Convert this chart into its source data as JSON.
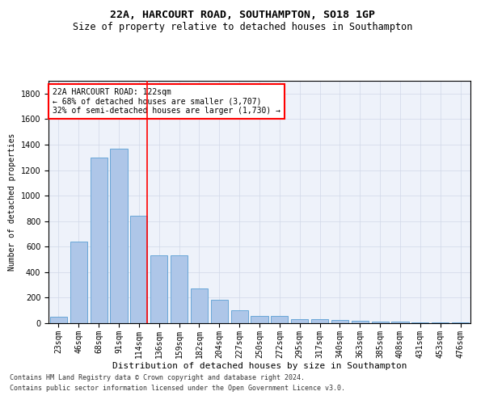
{
  "title": "22A, HARCOURT ROAD, SOUTHAMPTON, SO18 1GP",
  "subtitle": "Size of property relative to detached houses in Southampton",
  "xlabel": "Distribution of detached houses by size in Southampton",
  "ylabel": "Number of detached properties",
  "categories": [
    "23sqm",
    "46sqm",
    "68sqm",
    "91sqm",
    "114sqm",
    "136sqm",
    "159sqm",
    "182sqm",
    "204sqm",
    "227sqm",
    "250sqm",
    "272sqm",
    "295sqm",
    "317sqm",
    "340sqm",
    "363sqm",
    "385sqm",
    "408sqm",
    "431sqm",
    "453sqm",
    "476sqm"
  ],
  "values": [
    50,
    640,
    1300,
    1370,
    840,
    530,
    530,
    270,
    185,
    100,
    60,
    60,
    30,
    30,
    25,
    20,
    15,
    10,
    8,
    5,
    5
  ],
  "bar_color": "#aec6e8",
  "bar_edge_color": "#5a9fd4",
  "vline_x_index": 4,
  "vline_color": "red",
  "annotation_text": "22A HARCOURT ROAD: 122sqm\n← 68% of detached houses are smaller (3,707)\n32% of semi-detached houses are larger (1,730) →",
  "annotation_box_color": "white",
  "annotation_box_edge": "red",
  "ylim": [
    0,
    1900
  ],
  "yticks": [
    0,
    200,
    400,
    600,
    800,
    1000,
    1200,
    1400,
    1600,
    1800
  ],
  "grid_color": "#d0d8e8",
  "background_color": "#eef2fa",
  "footer1": "Contains HM Land Registry data © Crown copyright and database right 2024.",
  "footer2": "Contains public sector information licensed under the Open Government Licence v3.0.",
  "title_fontsize": 9.5,
  "subtitle_fontsize": 8.5,
  "xlabel_fontsize": 8,
  "ylabel_fontsize": 7,
  "tick_fontsize": 7,
  "annotation_fontsize": 7
}
